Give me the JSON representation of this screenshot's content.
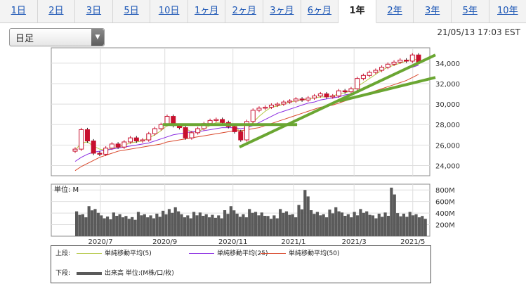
{
  "tabs": [
    {
      "label": "1日",
      "active": false
    },
    {
      "label": "2日",
      "active": false
    },
    {
      "label": "3日",
      "active": false
    },
    {
      "label": "5日",
      "active": false
    },
    {
      "label": "10日",
      "active": false
    },
    {
      "label": "1ヶ月",
      "active": false
    },
    {
      "label": "2ヶ月",
      "active": false
    },
    {
      "label": "3ヶ月",
      "active": false
    },
    {
      "label": "6ヶ月",
      "active": false
    },
    {
      "label": "1年",
      "active": true
    },
    {
      "label": "2年",
      "active": false
    },
    {
      "label": "3年",
      "active": false
    },
    {
      "label": "5年",
      "active": false
    },
    {
      "label": "10年",
      "active": false
    }
  ],
  "period_select": {
    "value": "日足",
    "icon": "triangle-down-icon"
  },
  "timestamp": "21/05/13 17:03 EST",
  "colors": {
    "up": "#c8102e",
    "down": "#1a1a1a",
    "ma5": "#b6c94a",
    "ma25": "#8a2be2",
    "ma50": "#d9472b",
    "trend": "#6aa632",
    "volume": "#5a5a5a"
  },
  "chart_data": [
    {
      "type": "candlestick",
      "y_ticks": [
        "34,000",
        "32,000",
        "30,000",
        "28,000",
        "26,000",
        "24,000"
      ],
      "ylim": [
        23000,
        35500
      ],
      "x_ticks": [
        "2020/7",
        "2020/9",
        "2020/11",
        "2021/1",
        "2021/3",
        "2021/5"
      ],
      "close_series": [
        25600,
        27500,
        26400,
        25200,
        25100,
        25700,
        26100,
        25800,
        26300,
        26700,
        26400,
        26500,
        27100,
        27600,
        28000,
        28800,
        27900,
        27700,
        26700,
        27200,
        27600,
        28100,
        28400,
        28500,
        28200,
        27800,
        27300,
        26500,
        28300,
        29400,
        29600,
        29700,
        29900,
        30000,
        30200,
        30300,
        30500,
        30400,
        30600,
        30800,
        31000,
        30700,
        30800,
        31300,
        31200,
        31500,
        32500,
        32800,
        33100,
        33300,
        33600,
        33900,
        34100,
        34300,
        34200,
        34800,
        34100
      ],
      "ma_lines": [
        {
          "name": "単純移動平均(5)",
          "color": "#b6c94a",
          "values": [
            25500,
            26200,
            26300,
            25900,
            25600,
            25500,
            25700,
            25800,
            26000,
            26200,
            26300,
            26400,
            26700,
            27000,
            27400,
            27900,
            28000,
            28000,
            27600,
            27300,
            27300,
            27600,
            27900,
            28200,
            28200,
            28000,
            27800,
            27300,
            27600,
            28200,
            28800,
            29300,
            29700,
            29800,
            30000,
            30200,
            30300,
            30400,
            30500,
            30600,
            30700,
            30700,
            30800,
            31000,
            31100,
            31300,
            31700,
            32100,
            32500,
            32900,
            33300,
            33600,
            33800,
            34000,
            34200,
            34400,
            34300
          ]
        },
        {
          "name": "単純移動平均(25)",
          "color": "#8a2be2",
          "values": [
            24400,
            24800,
            25100,
            25300,
            25400,
            25500,
            25600,
            25700,
            25800,
            25900,
            26000,
            26100,
            26200,
            26400,
            26600,
            26800,
            27000,
            27100,
            27200,
            27300,
            27300,
            27400,
            27500,
            27600,
            27700,
            27700,
            27700,
            27600,
            27700,
            27900,
            28200,
            28500,
            28800,
            29100,
            29300,
            29500,
            29700,
            29900,
            30100,
            30200,
            30400,
            30500,
            30600,
            30700,
            30900,
            31000,
            31200,
            31500,
            31800,
            32100,
            32400,
            32700,
            33000,
            33200,
            33400,
            33600,
            33800
          ]
        },
        {
          "name": "単純移動平均(50)",
          "color": "#d9472b",
          "values": [
            23500,
            23900,
            24200,
            24500,
            24800,
            25000,
            25200,
            25400,
            25500,
            25600,
            25700,
            25800,
            25900,
            26000,
            26100,
            26300,
            26400,
            26500,
            26600,
            26700,
            26800,
            26900,
            27000,
            27100,
            27200,
            27300,
            27400,
            27400,
            27500,
            27600,
            27700,
            27900,
            28100,
            28300,
            28500,
            28700,
            28900,
            29100,
            29300,
            29500,
            29700,
            29800,
            29900,
            30100,
            30300,
            30500,
            30700,
            30900,
            31100,
            31300,
            31500,
            31700,
            31900,
            32100,
            32300,
            32600,
            32900
          ]
        }
      ],
      "trendlines": [
        {
          "from": [
            0.29,
            28000
          ],
          "to": [
            0.64,
            28000
          ]
        },
        {
          "from": [
            0.49,
            25800
          ],
          "to": [
            1.0,
            34800
          ]
        },
        {
          "from": [
            0.75,
            30300
          ],
          "to": [
            1.0,
            32600
          ]
        }
      ]
    },
    {
      "type": "bar",
      "unit_label": "単位: M",
      "y_ticks": [
        "800M",
        "600M",
        "400M",
        "200M"
      ],
      "ylim": [
        0,
        900
      ],
      "x_ticks": [
        "2020/7",
        "2020/9",
        "2020/11",
        "2021/1",
        "2021/3",
        "2021/5"
      ],
      "values": [
        430,
        380,
        520,
        470,
        360,
        340,
        410,
        380,
        350,
        330,
        420,
        380,
        360,
        390,
        440,
        470,
        500,
        380,
        360,
        420,
        410,
        380,
        370,
        360,
        450,
        520,
        390,
        380,
        470,
        420,
        410,
        350,
        360,
        470,
        430,
        380,
        540,
        800,
        450,
        420,
        380,
        460,
        500,
        410,
        380,
        420,
        470,
        430,
        360,
        390,
        410,
        840,
        400,
        390,
        420,
        380,
        350
      ]
    }
  ],
  "legend": {
    "top_label": "上段:",
    "bottom_label": "下段:",
    "ma5": "単純移動平均(5)",
    "ma25": "単純移動平均(25)",
    "ma50": "単純移動平均(50)",
    "volume": "出来高 単位:(M株/口/枚)"
  }
}
